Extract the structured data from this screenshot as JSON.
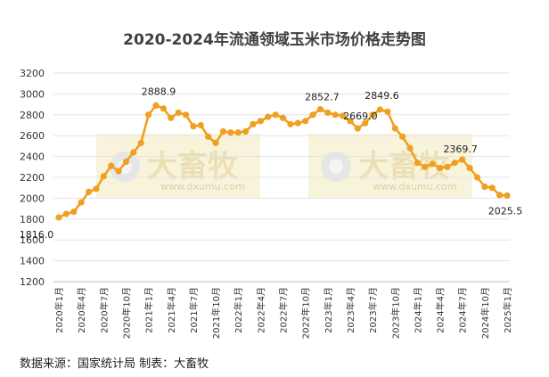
{
  "chart_data": {
    "type": "line",
    "title": "2020-2024年流通领域玉米市场价格走势图",
    "xlabel": "",
    "ylabel": "",
    "ylim": [
      1200,
      3200
    ],
    "yticks": [
      1200,
      1400,
      1600,
      1800,
      2000,
      2200,
      2400,
      2600,
      2800,
      3000,
      3200
    ],
    "grid": "horizontal",
    "color": "#f0a020",
    "x_tick_labels": [
      "2020年1月",
      "2020年4月",
      "2020年7月",
      "2020年10月",
      "2021年1月",
      "2021年4月",
      "2021年7月",
      "2021年10月",
      "2022年1月",
      "2022年4月",
      "2022年7月",
      "2022年10月",
      "2023年1月",
      "2023年4月",
      "2023年7月",
      "2023年10月",
      "2024年1月",
      "2024年4月",
      "2024年7月",
      "2024年10月",
      "2025年1月"
    ],
    "series": [
      {
        "values": [
          1816.0,
          1850,
          1870,
          1960,
          2060,
          2090,
          2210,
          2310,
          2260,
          2350,
          2440,
          2530,
          2800,
          2888.9,
          2860,
          2770,
          2820,
          2800,
          2690,
          2700,
          2590,
          2530,
          2640,
          2630,
          2630,
          2640,
          2710,
          2740,
          2780,
          2800,
          2770,
          2710,
          2720,
          2740,
          2800,
          2852.7,
          2820,
          2800,
          2790,
          2740,
          2669.0,
          2720,
          2800,
          2849.6,
          2830,
          2670,
          2590,
          2480,
          2340,
          2300,
          2330,
          2290,
          2300,
          2340,
          2369.7,
          2290,
          2200,
          2110,
          2100,
          2030,
          2025.5
        ]
      }
    ],
    "data_labels": [
      {
        "index": 0,
        "text": "1816.0"
      },
      {
        "index": 13,
        "text": "2888.9"
      },
      {
        "index": 35,
        "text": "2852.7"
      },
      {
        "index": 40,
        "text": "2669.0"
      },
      {
        "index": 43,
        "text": "2849.6"
      },
      {
        "index": 54,
        "text": "2369.7"
      },
      {
        "index": 60,
        "text": "2025.5"
      }
    ]
  },
  "watermark": {
    "brand": "大畜牧",
    "url": "www.dxumu.com"
  },
  "source_text": "数据来源：国家统计局 制表：大畜牧"
}
